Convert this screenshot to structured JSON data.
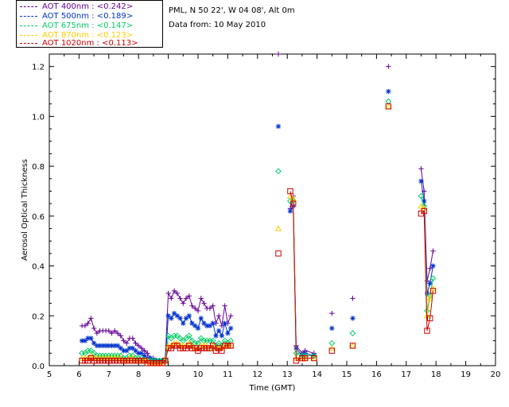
{
  "info": {
    "site_line": "PML, N 50 22', W 04 08', Alt 0m",
    "date_line": "Data from: 10 May 2010"
  },
  "legend": [
    {
      "label": "AOT  400nm : <0.242>",
      "color": "#660099"
    },
    {
      "label": "AOT  500nm : <0.189>",
      "color": "#0033cc"
    },
    {
      "label": "AOT  675nm : <0.147>",
      "color": "#00cc66"
    },
    {
      "label": "AOT  870nm : <0.123>",
      "color": "#ffcc00"
    },
    {
      "label": "AOT 1020nm : <0.113>",
      "color": "#cc0000"
    }
  ],
  "chart_data": {
    "type": "scatter",
    "xlabel": "Time (GMT)",
    "ylabel": "Aerosol Optical Thickness",
    "xlim": [
      5,
      20
    ],
    "ylim": [
      0.0,
      1.25
    ],
    "xticks": [
      "5",
      "6",
      "7",
      "8",
      "9",
      "10",
      "11",
      "12",
      "13",
      "14",
      "15",
      "16",
      "17",
      "18",
      "19",
      "20"
    ],
    "yticks": [
      "0.0",
      "0.2",
      "0.4",
      "0.6",
      "0.8",
      "1.0",
      "1.2"
    ],
    "series": [
      {
        "name": "AOT  400nm : <0.242>",
        "color": "#660099",
        "marker": "plus",
        "x": [
          6.1,
          6.2,
          6.3,
          6.4,
          6.5,
          6.6,
          6.7,
          6.8,
          6.9,
          7.0,
          7.1,
          7.2,
          7.3,
          7.4,
          7.5,
          7.6,
          7.7,
          7.8,
          7.9,
          8.0,
          8.1,
          8.2,
          8.3,
          8.4,
          8.5,
          8.6,
          8.7,
          8.8,
          8.9,
          9.0,
          9.1,
          9.2,
          9.3,
          9.4,
          9.5,
          9.6,
          9.7,
          9.8,
          9.9,
          10.0,
          10.1,
          10.2,
          10.3,
          10.4,
          10.5,
          10.6,
          10.7,
          10.8,
          10.9,
          11.0,
          11.1,
          12.7,
          13.1,
          13.2,
          13.3,
          13.5,
          13.6,
          13.9,
          14.5,
          15.2,
          16.4,
          17.5,
          17.6,
          17.7,
          17.8,
          17.9
        ],
        "y": [
          0.16,
          0.16,
          0.17,
          0.19,
          0.15,
          0.13,
          0.14,
          0.14,
          0.14,
          0.14,
          0.13,
          0.14,
          0.13,
          0.12,
          0.1,
          0.09,
          0.11,
          0.11,
          0.09,
          0.08,
          0.07,
          0.06,
          0.05,
          0.03,
          0.03,
          0.02,
          0.02,
          0.02,
          0.03,
          0.29,
          0.27,
          0.3,
          0.29,
          0.27,
          0.25,
          0.27,
          0.28,
          0.24,
          0.23,
          0.22,
          0.27,
          0.25,
          0.23,
          0.23,
          0.24,
          0.17,
          0.2,
          0.16,
          0.24,
          0.17,
          0.2,
          1.25,
          0.63,
          0.68,
          0.08,
          0.05,
          0.06,
          0.05,
          0.21,
          0.27,
          1.2,
          0.79,
          0.7,
          0.34,
          0.39,
          0.46
        ]
      },
      {
        "name": "AOT  500nm : <0.189>",
        "color": "#0033cc",
        "marker": "star",
        "x": [
          6.1,
          6.2,
          6.3,
          6.4,
          6.5,
          6.6,
          6.7,
          6.8,
          6.9,
          7.0,
          7.1,
          7.2,
          7.3,
          7.4,
          7.5,
          7.6,
          7.7,
          7.8,
          7.9,
          8.0,
          8.1,
          8.2,
          8.3,
          8.4,
          8.5,
          8.6,
          8.7,
          8.8,
          8.9,
          9.0,
          9.1,
          9.2,
          9.3,
          9.4,
          9.5,
          9.6,
          9.7,
          9.8,
          9.9,
          10.0,
          10.1,
          10.2,
          10.3,
          10.4,
          10.5,
          10.6,
          10.7,
          10.8,
          10.9,
          11.0,
          11.1,
          12.7,
          13.1,
          13.2,
          13.3,
          13.5,
          13.6,
          13.9,
          14.5,
          15.2,
          16.4,
          17.5,
          17.6,
          17.7,
          17.8,
          17.9
        ],
        "y": [
          0.1,
          0.1,
          0.11,
          0.11,
          0.09,
          0.08,
          0.08,
          0.08,
          0.08,
          0.08,
          0.08,
          0.08,
          0.08,
          0.07,
          0.06,
          0.06,
          0.07,
          0.07,
          0.06,
          0.05,
          0.05,
          0.04,
          0.03,
          0.03,
          0.02,
          0.02,
          0.02,
          0.02,
          0.02,
          0.2,
          0.19,
          0.21,
          0.2,
          0.19,
          0.17,
          0.19,
          0.2,
          0.17,
          0.16,
          0.15,
          0.19,
          0.17,
          0.16,
          0.16,
          0.17,
          0.12,
          0.14,
          0.12,
          0.17,
          0.13,
          0.15,
          0.96,
          0.62,
          0.64,
          0.07,
          0.04,
          0.05,
          0.04,
          0.15,
          0.19,
          1.1,
          0.74,
          0.66,
          0.29,
          0.33,
          0.4
        ]
      },
      {
        "name": "AOT  675nm : <0.147>",
        "color": "#00cc66",
        "marker": "diamond",
        "x": [
          6.1,
          6.2,
          6.3,
          6.4,
          6.5,
          6.6,
          6.7,
          6.8,
          6.9,
          7.0,
          7.1,
          7.2,
          7.3,
          7.4,
          7.5,
          7.6,
          7.7,
          7.8,
          7.9,
          8.0,
          8.1,
          8.2,
          8.3,
          8.4,
          8.5,
          8.6,
          8.7,
          8.8,
          8.9,
          9.0,
          9.1,
          9.2,
          9.3,
          9.4,
          9.5,
          9.6,
          9.7,
          9.8,
          9.9,
          10.0,
          10.1,
          10.2,
          10.3,
          10.4,
          10.5,
          10.6,
          10.7,
          10.8,
          10.9,
          11.0,
          11.1,
          12.7,
          13.1,
          13.2,
          13.3,
          13.5,
          13.6,
          13.9,
          14.5,
          15.2,
          16.4,
          17.5,
          17.6,
          17.7,
          17.8,
          17.9
        ],
        "y": [
          0.05,
          0.05,
          0.06,
          0.06,
          0.05,
          0.04,
          0.04,
          0.04,
          0.04,
          0.04,
          0.04,
          0.04,
          0.04,
          0.04,
          0.03,
          0.03,
          0.04,
          0.04,
          0.03,
          0.03,
          0.03,
          0.02,
          0.02,
          0.02,
          0.02,
          0.02,
          0.02,
          0.02,
          0.02,
          0.12,
          0.11,
          0.12,
          0.12,
          0.11,
          0.1,
          0.11,
          0.12,
          0.1,
          0.09,
          0.09,
          0.11,
          0.1,
          0.1,
          0.1,
          0.1,
          0.08,
          0.09,
          0.08,
          0.1,
          0.09,
          0.1,
          0.78,
          0.66,
          0.66,
          0.05,
          0.04,
          0.04,
          0.04,
          0.09,
          0.13,
          1.06,
          0.68,
          0.64,
          0.22,
          0.28,
          0.35
        ]
      },
      {
        "name": "AOT  870nm : <0.123>",
        "color": "#ffcc00",
        "marker": "triangle",
        "x": [
          6.1,
          6.2,
          6.3,
          6.4,
          6.5,
          6.6,
          6.7,
          6.8,
          6.9,
          7.0,
          7.1,
          7.2,
          7.3,
          7.4,
          7.5,
          7.6,
          7.7,
          7.8,
          7.9,
          8.0,
          8.1,
          8.2,
          8.3,
          8.4,
          8.5,
          8.6,
          8.7,
          8.8,
          8.9,
          9.0,
          9.1,
          9.2,
          9.3,
          9.4,
          9.5,
          9.6,
          9.7,
          9.8,
          9.9,
          10.0,
          10.1,
          10.2,
          10.3,
          10.4,
          10.5,
          10.6,
          10.7,
          10.8,
          10.9,
          11.0,
          11.1,
          12.7,
          13.1,
          13.2,
          13.3,
          13.5,
          13.6,
          13.9,
          14.5,
          15.2,
          16.4,
          17.5,
          17.6,
          17.7,
          17.8,
          17.9
        ],
        "y": [
          0.03,
          0.03,
          0.03,
          0.04,
          0.03,
          0.03,
          0.03,
          0.03,
          0.03,
          0.03,
          0.03,
          0.03,
          0.03,
          0.03,
          0.02,
          0.02,
          0.03,
          0.03,
          0.02,
          0.02,
          0.02,
          0.02,
          0.02,
          0.01,
          0.01,
          0.01,
          0.01,
          0.01,
          0.02,
          0.08,
          0.08,
          0.09,
          0.09,
          0.08,
          0.08,
          0.08,
          0.09,
          0.08,
          0.07,
          0.07,
          0.08,
          0.08,
          0.08,
          0.07,
          0.08,
          0.07,
          0.07,
          0.07,
          0.08,
          0.08,
          0.08,
          0.55,
          0.68,
          0.67,
          0.03,
          0.03,
          0.03,
          0.03,
          0.07,
          0.08,
          1.04,
          0.64,
          0.63,
          0.2,
          0.27,
          0.31
        ]
      },
      {
        "name": "AOT 1020nm : <0.113>",
        "color": "#cc0000",
        "marker": "square",
        "x": [
          6.1,
          6.2,
          6.3,
          6.4,
          6.5,
          6.6,
          6.7,
          6.8,
          6.9,
          7.0,
          7.1,
          7.2,
          7.3,
          7.4,
          7.5,
          7.6,
          7.7,
          7.8,
          7.9,
          8.0,
          8.1,
          8.2,
          8.3,
          8.4,
          8.5,
          8.6,
          8.7,
          8.8,
          8.9,
          9.0,
          9.1,
          9.2,
          9.3,
          9.4,
          9.5,
          9.6,
          9.7,
          9.8,
          9.9,
          10.0,
          10.1,
          10.2,
          10.3,
          10.4,
          10.5,
          10.6,
          10.7,
          10.8,
          10.9,
          11.0,
          11.1,
          12.7,
          13.1,
          13.2,
          13.3,
          13.5,
          13.6,
          13.9,
          14.5,
          15.2,
          16.4,
          17.5,
          17.6,
          17.7,
          17.8,
          17.9
        ],
        "y": [
          0.02,
          0.02,
          0.02,
          0.03,
          0.02,
          0.02,
          0.02,
          0.02,
          0.02,
          0.02,
          0.02,
          0.02,
          0.02,
          0.02,
          0.02,
          0.02,
          0.02,
          0.02,
          0.02,
          0.02,
          0.02,
          0.02,
          0.01,
          0.01,
          0.01,
          0.01,
          0.01,
          0.01,
          0.02,
          0.07,
          0.07,
          0.08,
          0.08,
          0.07,
          0.07,
          0.07,
          0.08,
          0.07,
          0.07,
          0.06,
          0.07,
          0.07,
          0.07,
          0.07,
          0.08,
          0.06,
          0.07,
          0.06,
          0.08,
          0.08,
          0.08,
          0.45,
          0.7,
          0.65,
          0.02,
          0.03,
          0.03,
          0.03,
          0.06,
          0.08,
          1.04,
          0.61,
          0.62,
          0.14,
          0.19,
          0.3
        ]
      }
    ]
  }
}
